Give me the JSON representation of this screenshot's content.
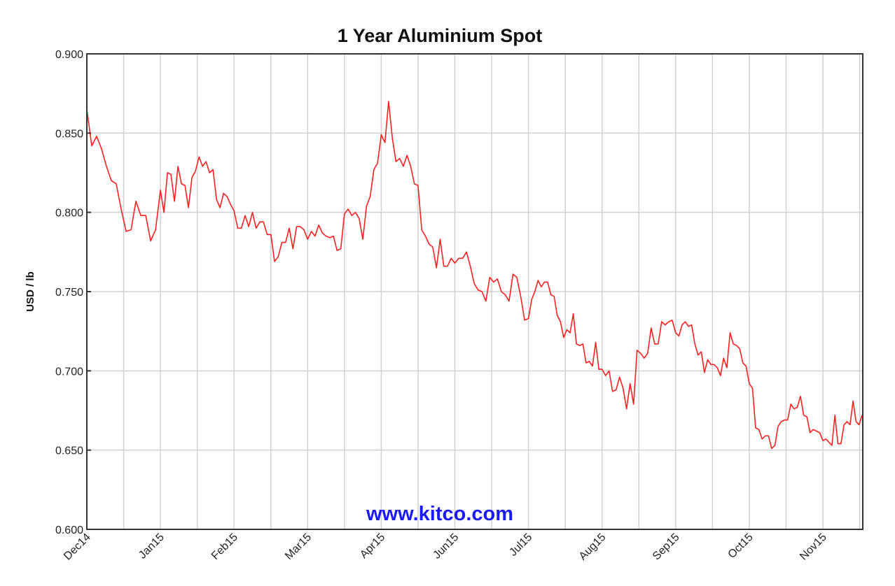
{
  "chart_data": {
    "type": "line",
    "title": "1 Year Aluminium Spot",
    "xlabel": "",
    "ylabel": "USD / lb",
    "ylim": [
      0.6,
      0.9
    ],
    "yticks": [
      "0.600",
      "0.650",
      "0.700",
      "0.750",
      "0.800",
      "0.850",
      "0.900"
    ],
    "ytick_values": [
      0.6,
      0.65,
      0.7,
      0.75,
      0.8,
      0.85,
      0.9
    ],
    "xticks": [
      {
        "label": "Dec14",
        "index": 0
      },
      {
        "label": "Jan15",
        "index": 15
      },
      {
        "label": "Feb15",
        "index": 36
      },
      {
        "label": "Mar15",
        "index": 56
      },
      {
        "label": "Apr15",
        "index": 76
      },
      {
        "label": "Jun15",
        "index": 96
      },
      {
        "label": "Jul15",
        "index": 115
      },
      {
        "label": "Aug15",
        "index": 138
      },
      {
        "label": "Sep15",
        "index": 159
      },
      {
        "label": "Oct15",
        "index": 182
      },
      {
        "label": "Nov15",
        "index": 205
      }
    ],
    "grid": true,
    "line_color": "#ff2020",
    "watermark": "www.kitco.com",
    "watermark_color": "#1a1aff",
    "series": [
      {
        "values": [
          0.865,
          0.842,
          0.848,
          0.84,
          0.829,
          0.82,
          0.818,
          0.802,
          0.788,
          0.789,
          0.807,
          0.798,
          0.798,
          0.782,
          0.789,
          0.814,
          0.8,
          0.825,
          0.824,
          0.807,
          0.829,
          0.818,
          0.817,
          0.803,
          0.822,
          0.826,
          0.835,
          0.829,
          0.832,
          0.825,
          0.827,
          0.808,
          0.803,
          0.812,
          0.81,
          0.805,
          0.801,
          0.79,
          0.79,
          0.798,
          0.791,
          0.8,
          0.79,
          0.794,
          0.794,
          0.786,
          0.786,
          0.769,
          0.772,
          0.781,
          0.781,
          0.79,
          0.777,
          0.791,
          0.791,
          0.789,
          0.783,
          0.788,
          0.785,
          0.792,
          0.787,
          0.785,
          0.784,
          0.785,
          0.776,
          0.777,
          0.799,
          0.802,
          0.798,
          0.8,
          0.796,
          0.783,
          0.804,
          0.81,
          0.827,
          0.831,
          0.849,
          0.844,
          0.87,
          0.847,
          0.832,
          0.834,
          0.829,
          0.836,
          0.829,
          0.818,
          0.817,
          0.789,
          0.785,
          0.78,
          0.778,
          0.765,
          0.783,
          0.766,
          0.766,
          0.771,
          0.768,
          0.771,
          0.771,
          0.775,
          0.766,
          0.755,
          0.751,
          0.75,
          0.744,
          0.759,
          0.756,
          0.758,
          0.75,
          0.748,
          0.744,
          0.761,
          0.759,
          0.747,
          0.732,
          0.733,
          0.745,
          0.75,
          0.757,
          0.753,
          0.756,
          0.756,
          0.748,
          0.747,
          0.735,
          0.731,
          0.721,
          0.726,
          0.724,
          0.736,
          0.717,
          0.716,
          0.717,
          0.705,
          0.706,
          0.703,
          0.718,
          0.701,
          0.701,
          0.697,
          0.7,
          0.687,
          0.688,
          0.696,
          0.689,
          0.676,
          0.692,
          0.679,
          0.713,
          0.711,
          0.708,
          0.711,
          0.727,
          0.717,
          0.717,
          0.731,
          0.729,
          0.731,
          0.732,
          0.724,
          0.722,
          0.729,
          0.731,
          0.728,
          0.729,
          0.717,
          0.71,
          0.712,
          0.699,
          0.707,
          0.704,
          0.704,
          0.702,
          0.697,
          0.708,
          0.702,
          0.724,
          0.717,
          0.716,
          0.714,
          0.705,
          0.703,
          0.692,
          0.689,
          0.664,
          0.663,
          0.657,
          0.659,
          0.659,
          0.651,
          0.653,
          0.665,
          0.668,
          0.669,
          0.669,
          0.679,
          0.676,
          0.677,
          0.684,
          0.672,
          0.671,
          0.661,
          0.663,
          0.662,
          0.661,
          0.656,
          0.657,
          0.655,
          0.653,
          0.672,
          0.654,
          0.654,
          0.666,
          0.668,
          0.666,
          0.681,
          0.668,
          0.666,
          0.672
        ]
      }
    ]
  }
}
